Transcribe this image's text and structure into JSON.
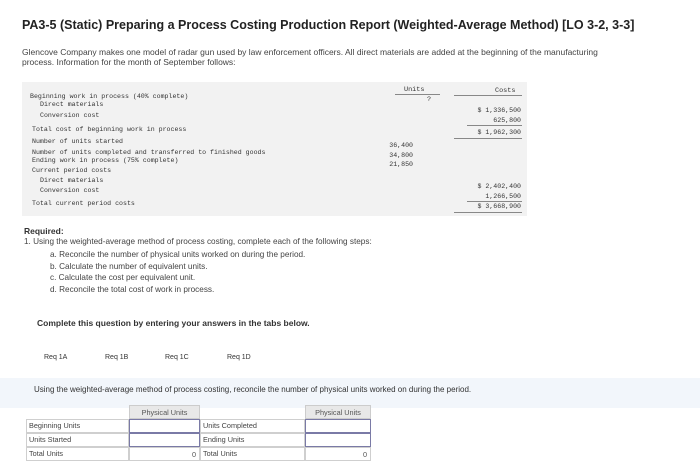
{
  "title": "PA3-5 (Static) Preparing a Process Costing Production Report (Weighted-Average Method) [LO 3-2, 3-3]",
  "intro": "Glencove Company makes one model of radar gun used by law enforcement officers. All direct materials are added at the beginning of the manufacturing process. Information for the month of September follows:",
  "table": {
    "col_units": "Units",
    "col_units_mark": "?",
    "col_costs": "Costs",
    "rows": [
      {
        "label": "Beginning work in process (40% complete)",
        "units": "",
        "costs": ""
      },
      {
        "label": "Direct materials",
        "units": "",
        "costs": "$ 1,336,500"
      },
      {
        "label": "Conversion cost",
        "units": "",
        "costs": "625,800"
      },
      {
        "label": "Total cost of beginning work in process",
        "units": "",
        "costs": "$ 1,962,300"
      },
      {
        "label": "Number of units started",
        "units": "36,400",
        "costs": ""
      },
      {
        "label": "Number of units completed and transferred to finished goods",
        "units": "34,800",
        "costs": ""
      },
      {
        "label": "Ending work in process (75% complete)",
        "units": "21,850",
        "costs": ""
      },
      {
        "label": "Current period costs",
        "units": "",
        "costs": ""
      },
      {
        "label": "Direct materials",
        "units": "",
        "costs": "$ 2,402,400"
      },
      {
        "label": "Conversion cost",
        "units": "",
        "costs": "1,266,500"
      },
      {
        "label": "Total current period costs",
        "units": "",
        "costs": "$ 3,668,900"
      }
    ]
  },
  "required": {
    "heading": "Required:",
    "item1": "1. Using the weighted-average method of process costing, complete each of the following steps:",
    "a": "a. Reconcile the number of physical units worked on during the period.",
    "b": "b. Calculate the number of equivalent units.",
    "c": "c. Calculate the cost per equivalent unit.",
    "d": "d. Reconcile the total cost of work in process."
  },
  "complete_msg": "Complete this question by entering your answers in the tabs below.",
  "tabs": [
    "Req 1A",
    "Req 1B",
    "Req 1C",
    "Req 1D"
  ],
  "instruction": "Using the weighted-average method of process costing, reconcile the number of physical units worked on during the period.",
  "answer": {
    "left_header": "Physical Units",
    "right_header": "Physical Units",
    "left_rows": [
      "Beginning Units",
      "Units Started",
      "Total Units"
    ],
    "right_rows": [
      "Units Completed",
      "Ending Units",
      "Total Units"
    ],
    "left_total": "0",
    "right_total": "0"
  }
}
